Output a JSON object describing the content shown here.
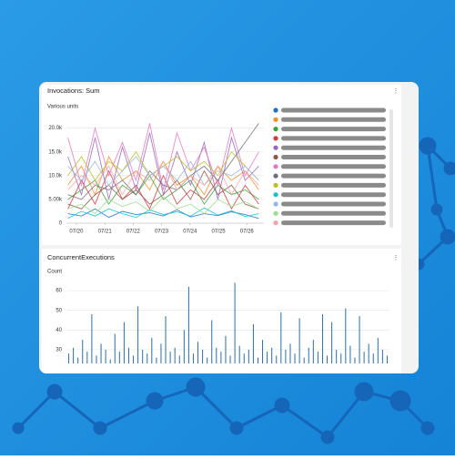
{
  "chart_data": [
    {
      "type": "line",
      "title": "Invocations: Sum",
      "ylabel": "Various units",
      "x": [
        -0.3,
        0.18,
        0.66,
        1.14,
        1.62,
        2.1,
        2.58,
        3.06,
        3.54,
        4.02,
        4.5,
        4.98,
        5.46,
        5.94,
        6.42
      ],
      "xlim": [
        -0.35,
        6.6
      ],
      "xticks": [
        {
          "value": 0,
          "label": "07/20"
        },
        {
          "value": 1,
          "label": "07/21"
        },
        {
          "value": 2,
          "label": "07/22"
        },
        {
          "value": 3,
          "label": "07/23"
        },
        {
          "value": 4,
          "label": "07/24"
        },
        {
          "value": 5,
          "label": "07/25"
        },
        {
          "value": 6,
          "label": "07/26"
        }
      ],
      "ylim": [
        0,
        23000
      ],
      "yticks": [
        0,
        {
          "value": 5000,
          "label": "5.00k"
        },
        {
          "value": 10000,
          "label": "10.0k"
        },
        {
          "value": 15000,
          "label": "15.0k"
        },
        {
          "value": 20000,
          "label": "20.0k"
        }
      ],
      "grid": true,
      "series": [
        {
          "color": "#1f6fc4",
          "values": [
            2000,
            1500,
            3000,
            1200,
            2500,
            1800,
            2200,
            1500,
            2800,
            1300,
            2000,
            1600,
            2400,
            1800,
            1000
          ]
        },
        {
          "color": "#f28e2b",
          "values": [
            8000,
            12000,
            6000,
            14000,
            9000,
            11000,
            7000,
            13000,
            8000,
            10000,
            6000,
            12000,
            9000,
            11000,
            7000
          ]
        },
        {
          "color": "#3aa33a",
          "values": [
            5000,
            7000,
            9000,
            4000,
            8000,
            6000,
            10000,
            5000,
            7000,
            9000,
            4000,
            8000,
            6000,
            7000,
            5000
          ]
        },
        {
          "color": "#d63a3a",
          "values": [
            3000,
            9000,
            4000,
            11000,
            5000,
            8000,
            3000,
            10000,
            4000,
            7000,
            5000,
            9000,
            3000,
            8000,
            4000
          ]
        },
        {
          "color": "#9467bd",
          "values": [
            14000,
            6000,
            18000,
            5000,
            16000,
            7000,
            19000,
            6000,
            15000,
            8000,
            17000,
            5000,
            18000,
            9000,
            12000
          ]
        },
        {
          "color": "#8c564b",
          "values": [
            4000,
            3000,
            6000,
            8000,
            5000,
            7000,
            4000,
            6000,
            9000,
            5000,
            11000,
            6000,
            8000,
            4000,
            3000
          ]
        },
        {
          "color": "#e377c2",
          "values": [
            18000,
            8000,
            20000,
            10000,
            17000,
            9000,
            21000,
            7000,
            19000,
            11000,
            16000,
            8000,
            20000,
            10000,
            15000
          ]
        },
        {
          "color": "#6f6f7a",
          "values": [
            6000,
            5000,
            8000,
            7000,
            9000,
            6000,
            11000,
            8000,
            7000,
            10000,
            12000,
            9000,
            13000,
            17000,
            21000
          ]
        },
        {
          "color": "#bcbd22",
          "values": [
            10000,
            14000,
            9000,
            13000,
            11000,
            15000,
            10000,
            12000,
            14000,
            11000,
            13000,
            10000,
            15000,
            12000,
            9000
          ]
        },
        {
          "color": "#17becf",
          "values": [
            1000,
            2500,
            1500,
            3000,
            2000,
            1200,
            2800,
            1800,
            2400,
            1500,
            3200,
            1700,
            2600,
            1400,
            2000
          ]
        },
        {
          "color": "#8fb8e6",
          "values": [
            12000,
            9000,
            13000,
            8000,
            11000,
            14000,
            10000,
            12000,
            9000,
            13000,
            8000,
            11000,
            10000,
            12000,
            9000
          ]
        },
        {
          "color": "#98df8a",
          "values": [
            3000,
            4000,
            2000,
            5000,
            3500,
            4500,
            2500,
            5500,
            3000,
            4000,
            2000,
            5000,
            3500,
            4500,
            3000
          ]
        },
        {
          "color": "#f4a3a8",
          "values": [
            7000,
            10000,
            8000,
            12000,
            6000,
            11000,
            9000,
            13000,
            7000,
            10000,
            8000,
            12000,
            6000,
            11000,
            8000
          ]
        }
      ]
    },
    {
      "type": "bar",
      "title": "ConcurrentExecutions",
      "ylabel": "Count",
      "color": "#2e6da4",
      "ylim": [
        23,
        67
      ],
      "yticks": [
        30,
        40,
        50,
        60
      ],
      "grid": true,
      "values": [
        28,
        31,
        26,
        35,
        29,
        48,
        27,
        33,
        30,
        25,
        38,
        29,
        44,
        31,
        27,
        52,
        30,
        28,
        36,
        26,
        33,
        47,
        29,
        31,
        27,
        40,
        62,
        28,
        34,
        30,
        26,
        45,
        31,
        29,
        37,
        27,
        64,
        32,
        28,
        30,
        43,
        26,
        35,
        29,
        31,
        27,
        49,
        30,
        33,
        28,
        46,
        26,
        31,
        35,
        29,
        48,
        27,
        44,
        30,
        28,
        51,
        32,
        26,
        47,
        29,
        33,
        28,
        36,
        30,
        27
      ]
    }
  ]
}
